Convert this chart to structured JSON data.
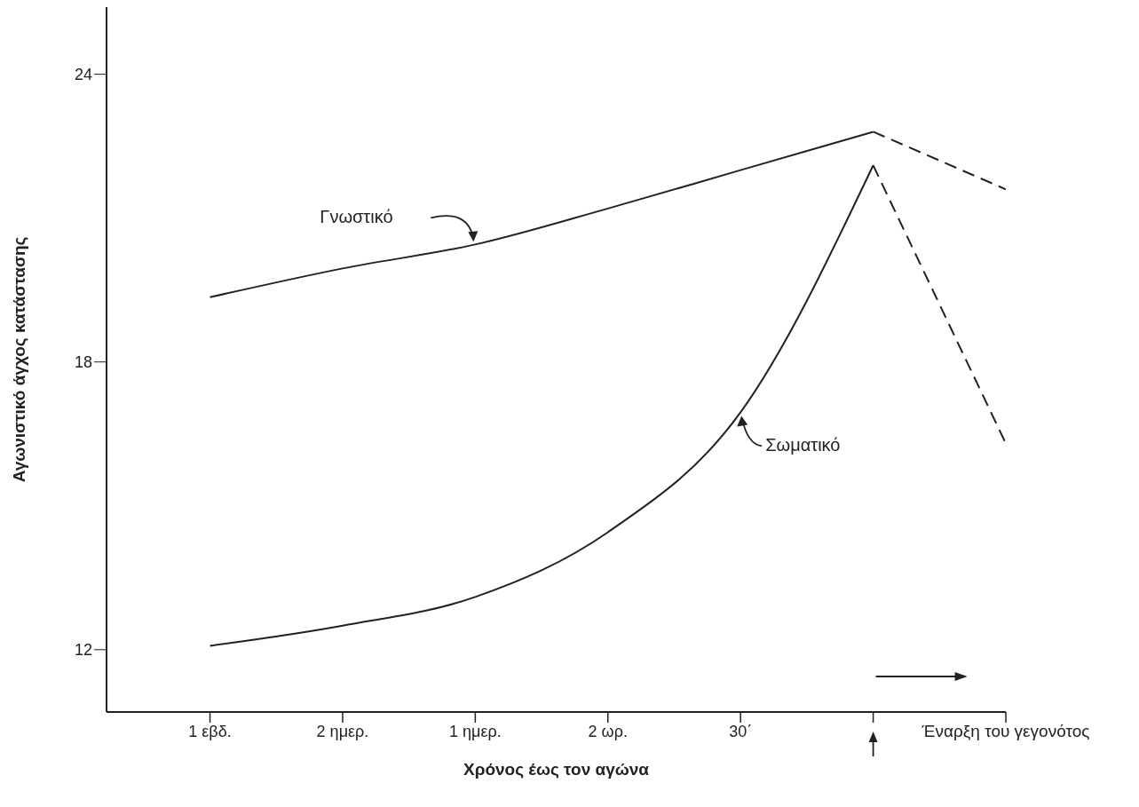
{
  "chart_data": {
    "type": "line",
    "xlabel": "Χρόνος έως τον αγώνα",
    "ylabel": "Αγωνιστικό άγχος κατάστασης",
    "categories": [
      "1 εβδ.",
      "2 ημερ.",
      "1 ημερ.",
      "2 ωρ.",
      "30΄",
      null,
      "Έναρξη του γεγονότος"
    ],
    "ylim": [
      10.7,
      25.4
    ],
    "yticks": [
      12,
      18,
      24
    ],
    "series": [
      {
        "color": "#222222",
        "line_style": "dashed",
        "values": [
          null,
          null,
          null,
          null,
          null,
          22.8,
          21.6
        ]
      },
      {
        "color": "#222222",
        "line_style": "dashed",
        "values": [
          null,
          null,
          null,
          null,
          null,
          22.1,
          16.3
        ]
      },
      {
        "name": "Γνωστικό",
        "color": "#222222",
        "line_style": "solid",
        "values": [
          19.35,
          19.95,
          20.45,
          21.2,
          22.0,
          22.8,
          null
        ]
      },
      {
        "name": "Σωματικό",
        "color": "#222222",
        "line_style": "solid",
        "values": [
          12.08,
          12.5,
          13.1,
          14.45,
          16.95,
          22.1,
          null
        ]
      }
    ]
  }
}
